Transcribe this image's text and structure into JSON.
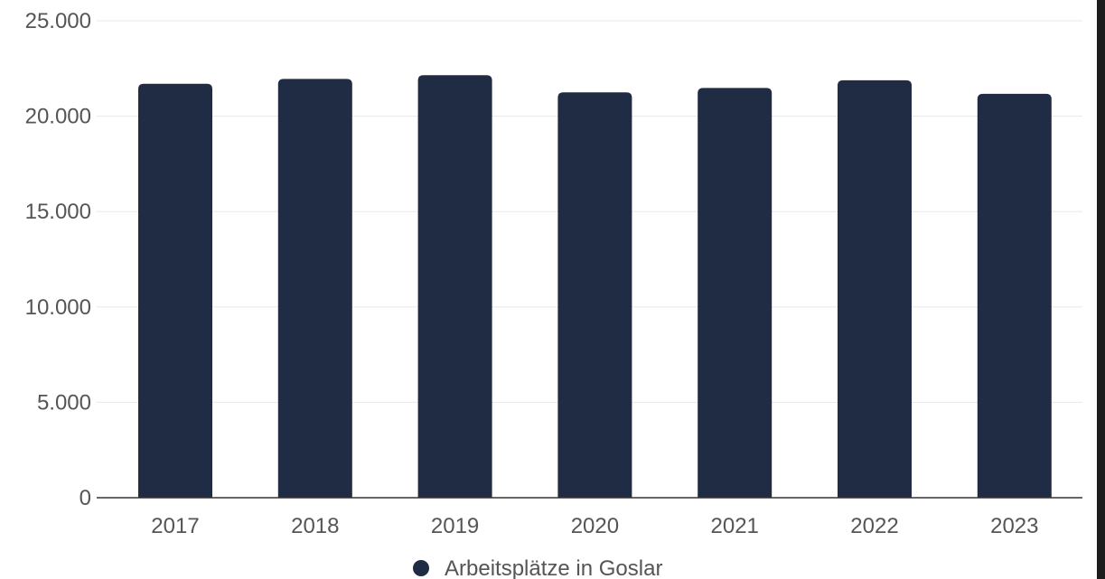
{
  "chart_data": {
    "type": "bar",
    "title": "",
    "xlabel": "",
    "ylabel": "",
    "categories": [
      "2017",
      "2018",
      "2019",
      "2020",
      "2021",
      "2022",
      "2023"
    ],
    "series": [
      {
        "name": "Arbeitsplätze in Goslar",
        "values": [
          21700,
          21950,
          22150,
          21250,
          21480,
          21880,
          21170
        ]
      }
    ],
    "ylim": [
      0,
      25000
    ],
    "yticks": [
      0,
      5000,
      10000,
      15000,
      20000,
      25000
    ],
    "ytick_labels": [
      "0",
      "5.000",
      "10.000",
      "15.000",
      "20.000",
      "25.000"
    ],
    "grid": true,
    "legend_position": "bottom-center",
    "bar_color": "#202c44",
    "grid_color": "#e8e8e8",
    "axis_color": "#333333",
    "text_color": "#555555"
  }
}
